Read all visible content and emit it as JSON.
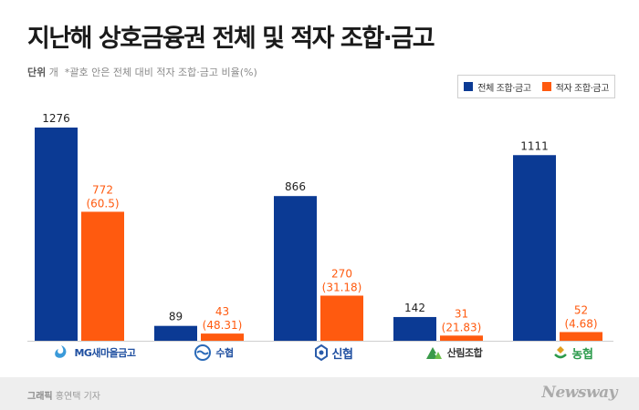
{
  "header": {
    "title": "지난해 상호금융권 전체 및 적자 조합·금고",
    "unit_label": "단위",
    "unit": "개",
    "note": "*괄호 안은 전체 대비 적자 조합·금고 비율(%)"
  },
  "legend": [
    {
      "label": "전체 조합·금고",
      "color": "#0b3a94"
    },
    {
      "label": "적자 조합·금고",
      "color": "#ff5a0f"
    }
  ],
  "chart_data": {
    "type": "bar",
    "categories": [
      "MG새마을금고",
      "수협",
      "신협",
      "산림조합",
      "농협"
    ],
    "series": [
      {
        "name": "전체 조합·금고",
        "values": [
          1276,
          89,
          866,
          142,
          1111
        ],
        "color": "#0b3a94"
      },
      {
        "name": "적자 조합·금고",
        "values": [
          772,
          43,
          270,
          31,
          52
        ],
        "color": "#ff5a0f",
        "percent_labels": [
          "(60.5)",
          "(48.31)",
          "(31.18)",
          "(21.83)",
          "(4.68)"
        ]
      }
    ],
    "ylim": [
      0,
      1400
    ],
    "grid": false,
    "legend_position": "top-right",
    "xlabel": "",
    "ylabel": ""
  },
  "logos": [
    {
      "label": "MG새마을금고",
      "icon": "mg-logo-icon",
      "color": "#1f4fa0",
      "icon_color": "#3a9ad9"
    },
    {
      "label": "수협",
      "icon": "suhyup-logo-icon",
      "color": "#1f4fa0",
      "icon_color": "#2a6ab8"
    },
    {
      "label": "신협",
      "icon": "shinhyup-logo-icon",
      "color": "#1f4fa0",
      "icon_color": "#2a5caa"
    },
    {
      "label": "산림조합",
      "icon": "forestry-logo-icon",
      "color": "#333333",
      "icon_color": "#3a9a4a"
    },
    {
      "label": "농협",
      "icon": "nonghyup-logo-icon",
      "color": "#2a9a4a",
      "icon_color": "#e0a020"
    }
  ],
  "footer": {
    "credit_label": "그래픽",
    "credit_name": "홍연택 기자",
    "brand": "Newsway"
  }
}
